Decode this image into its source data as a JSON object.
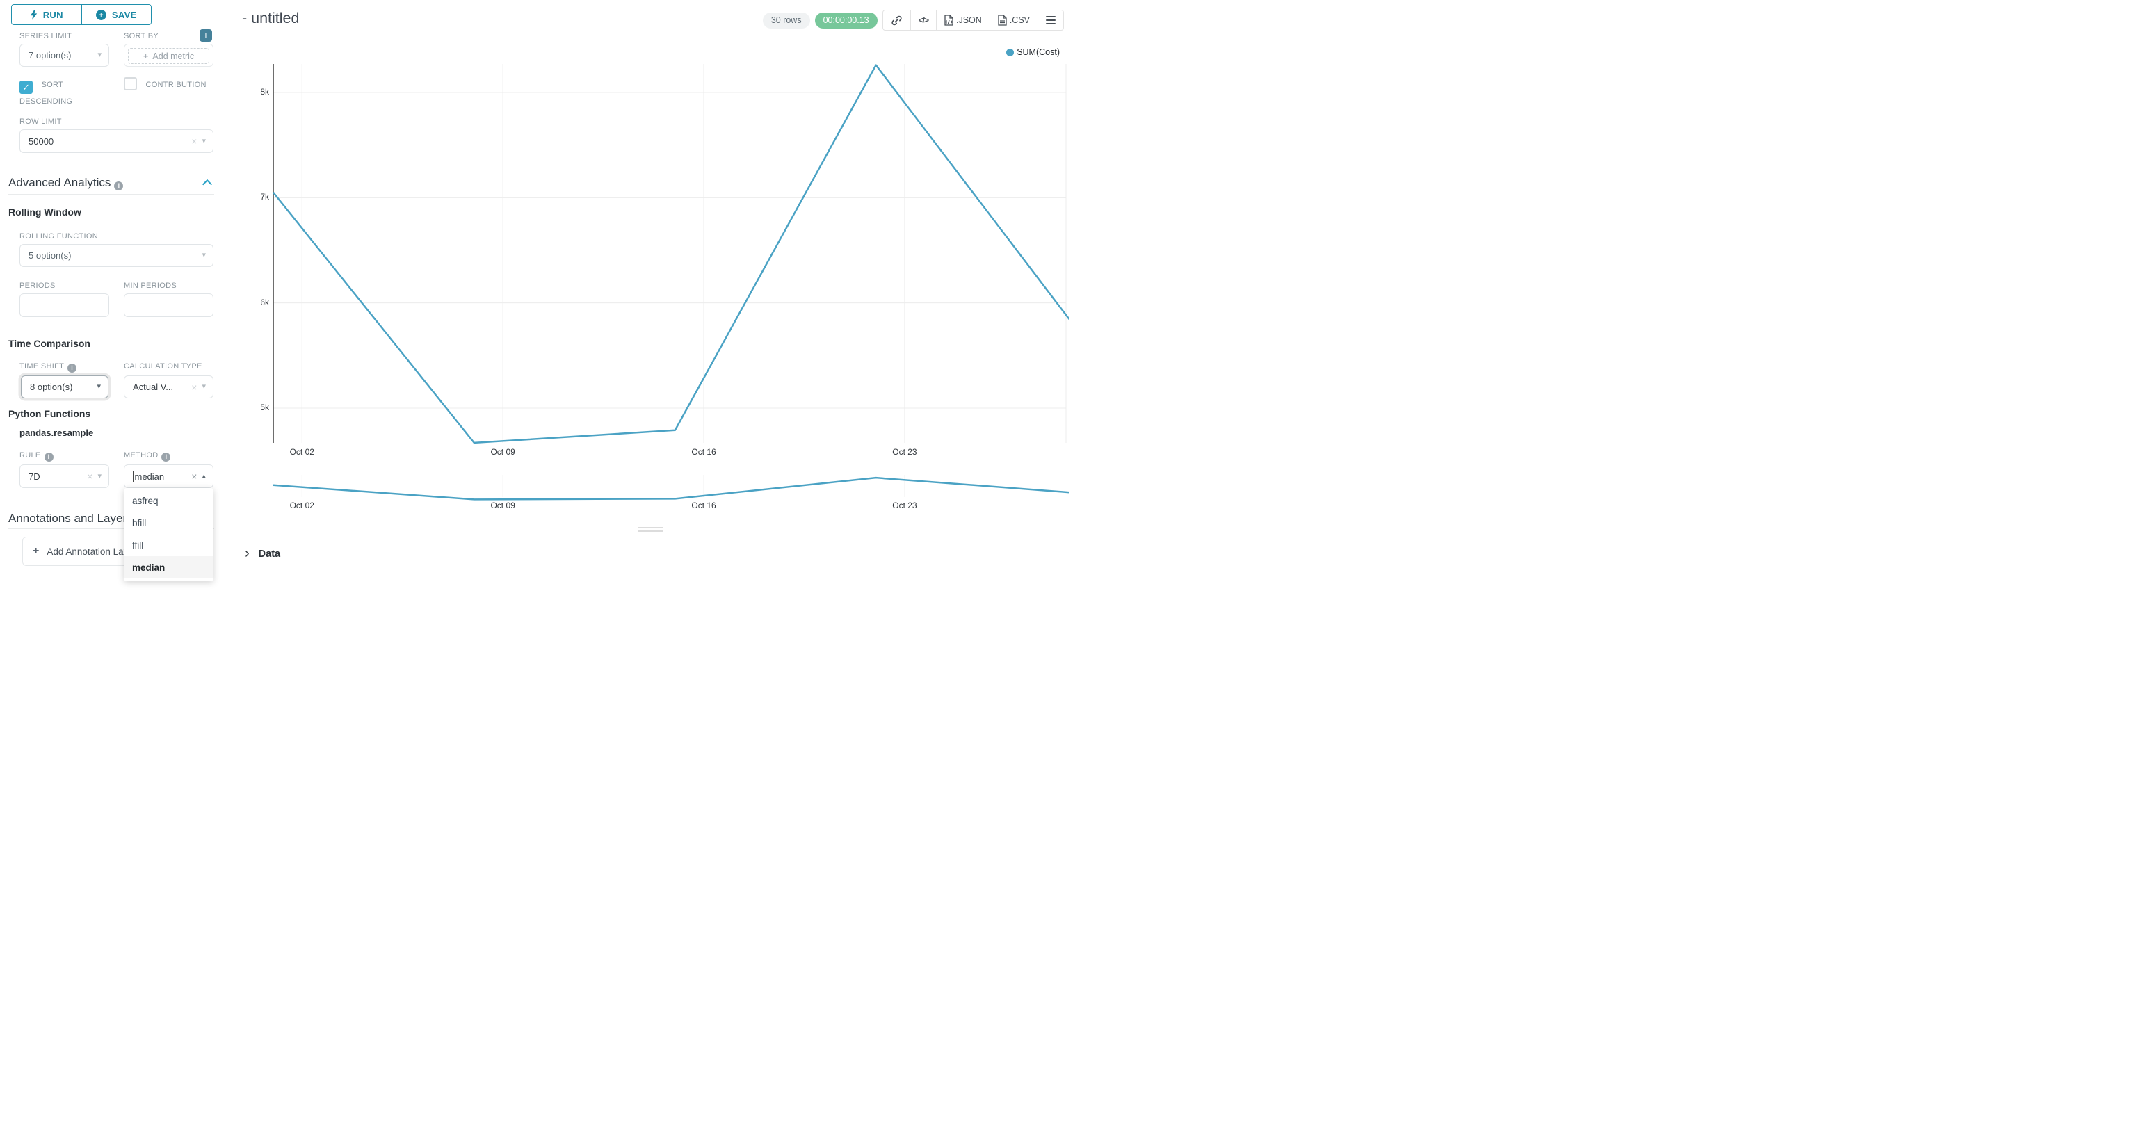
{
  "colors": {
    "accent": "#20a7c9",
    "accent_dark": "#1a87a3",
    "timer_bg": "#77c79a",
    "checkbox": "#3fadd1",
    "plus_square": "#45819a"
  },
  "sidebar": {
    "run_label": "RUN",
    "save_label": "SAVE",
    "series_limit": {
      "label": "SERIES LIMIT",
      "value": "7 option(s)"
    },
    "sort_by": {
      "label": "SORT BY",
      "placeholder": "Add metric"
    },
    "sort_descending": {
      "label": "SORT DESCENDING",
      "checked": true
    },
    "contribution": {
      "label": "CONTRIBUTION",
      "checked": false
    },
    "row_limit": {
      "label": "ROW LIMIT",
      "value": "50000"
    },
    "advanced_analytics_title": "Advanced Analytics",
    "rolling_window": {
      "title": "Rolling Window",
      "rolling_function": {
        "label": "ROLLING FUNCTION",
        "value": "5 option(s)"
      },
      "periods_label": "PERIODS",
      "min_periods_label": "MIN PERIODS"
    },
    "time_comparison": {
      "title": "Time Comparison",
      "time_shift": {
        "label": "TIME SHIFT",
        "value": "8 option(s)"
      },
      "calculation_type": {
        "label": "CALCULATION TYPE",
        "value": "Actual V..."
      }
    },
    "python_functions": {
      "title": "Python Functions",
      "subtitle": "pandas.resample",
      "rule": {
        "label": "RULE",
        "value": "7D"
      },
      "method": {
        "label": "METHOD",
        "value": "median",
        "options": [
          "asfreq",
          "bfill",
          "ffill",
          "median"
        ],
        "selected": "median"
      }
    },
    "annotations": {
      "title": "Annotations and Layers",
      "add_button": "Add Annotation Layer"
    }
  },
  "header": {
    "title": "- untitled",
    "rows_badge": "30 rows",
    "timer": "00:00:00.13",
    "export": {
      "json_label": ".JSON",
      "csv_label": ".CSV",
      "icons": [
        "chain-link-icon",
        "code-icon",
        "file-icon",
        "file-icon",
        "menu-icon"
      ]
    }
  },
  "data_panel": {
    "label": "Data"
  },
  "chart_data": {
    "type": "line",
    "title": "- untitled",
    "legend_position": "top-right",
    "grid": true,
    "series": [
      {
        "name": "SUM(Cost)",
        "color": "#4aa2c4",
        "x": [
          "Oct 01",
          "Oct 08",
          "Oct 15",
          "Oct 22",
          "Oct 29"
        ],
        "x_day_offsets": [
          0,
          7,
          14,
          21,
          28
        ],
        "values": [
          7050,
          4670,
          4790,
          8260,
          5750
        ]
      }
    ],
    "x_axis": {
      "ticks": [
        "Oct 02",
        "Oct 09",
        "Oct 16",
        "Oct 23"
      ],
      "tick_day_offsets": [
        1,
        8,
        15,
        22
      ]
    },
    "y_axis": {
      "ticks": [
        {
          "label": "8k",
          "value": 8000
        },
        {
          "label": "7k",
          "value": 7000
        },
        {
          "label": "6k",
          "value": 6000
        },
        {
          "label": "5k",
          "value": 5000
        }
      ]
    },
    "ylim": [
      4600,
      8280
    ],
    "mini_chart": {
      "present": true,
      "x_ticks": [
        "Oct 02",
        "Oct 09",
        "Oct 16",
        "Oct 23"
      ]
    }
  }
}
